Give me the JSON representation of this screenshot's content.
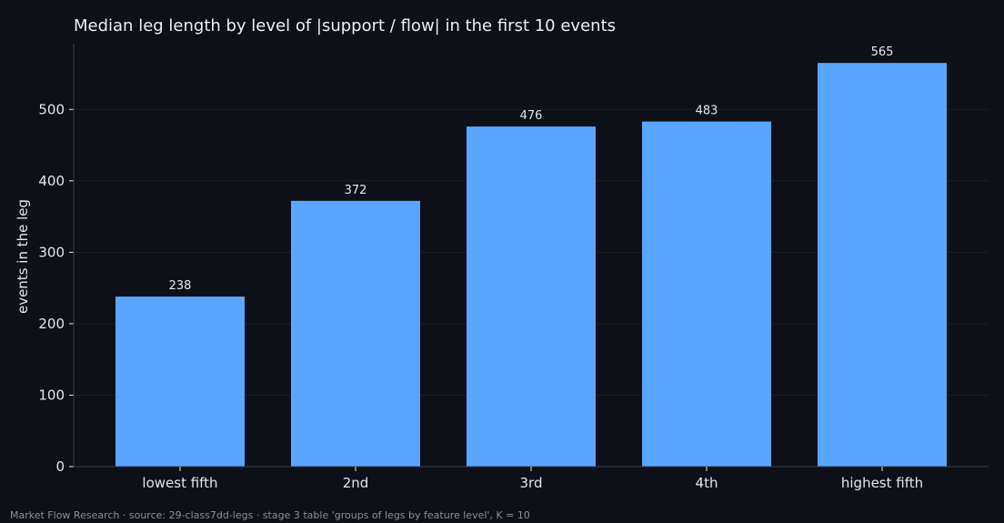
{
  "chart_data": {
    "type": "bar",
    "title": "Median leg length by level of |support / flow| in the first 10 events",
    "xlabel": "",
    "ylabel": "events in the leg",
    "categories": [
      "lowest fifth",
      "2nd",
      "3rd",
      "4th",
      "highest fifth"
    ],
    "values": [
      238,
      372,
      476,
      483,
      565
    ],
    "ylim": [
      0,
      592
    ],
    "yticks": [
      0,
      100,
      200,
      300,
      400,
      500
    ],
    "grid": true,
    "bar_color": "#58a6ff"
  },
  "footer": "Market Flow Research · source: 29-class7dd-legs · stage 3 table 'groups of legs by feature level', K = 10",
  "colors": {
    "background": "#0d1017",
    "bar": "#58a6ff",
    "text": "#e6e6e6",
    "grid": "#1a1e27",
    "axis": "#3a3f4a"
  }
}
